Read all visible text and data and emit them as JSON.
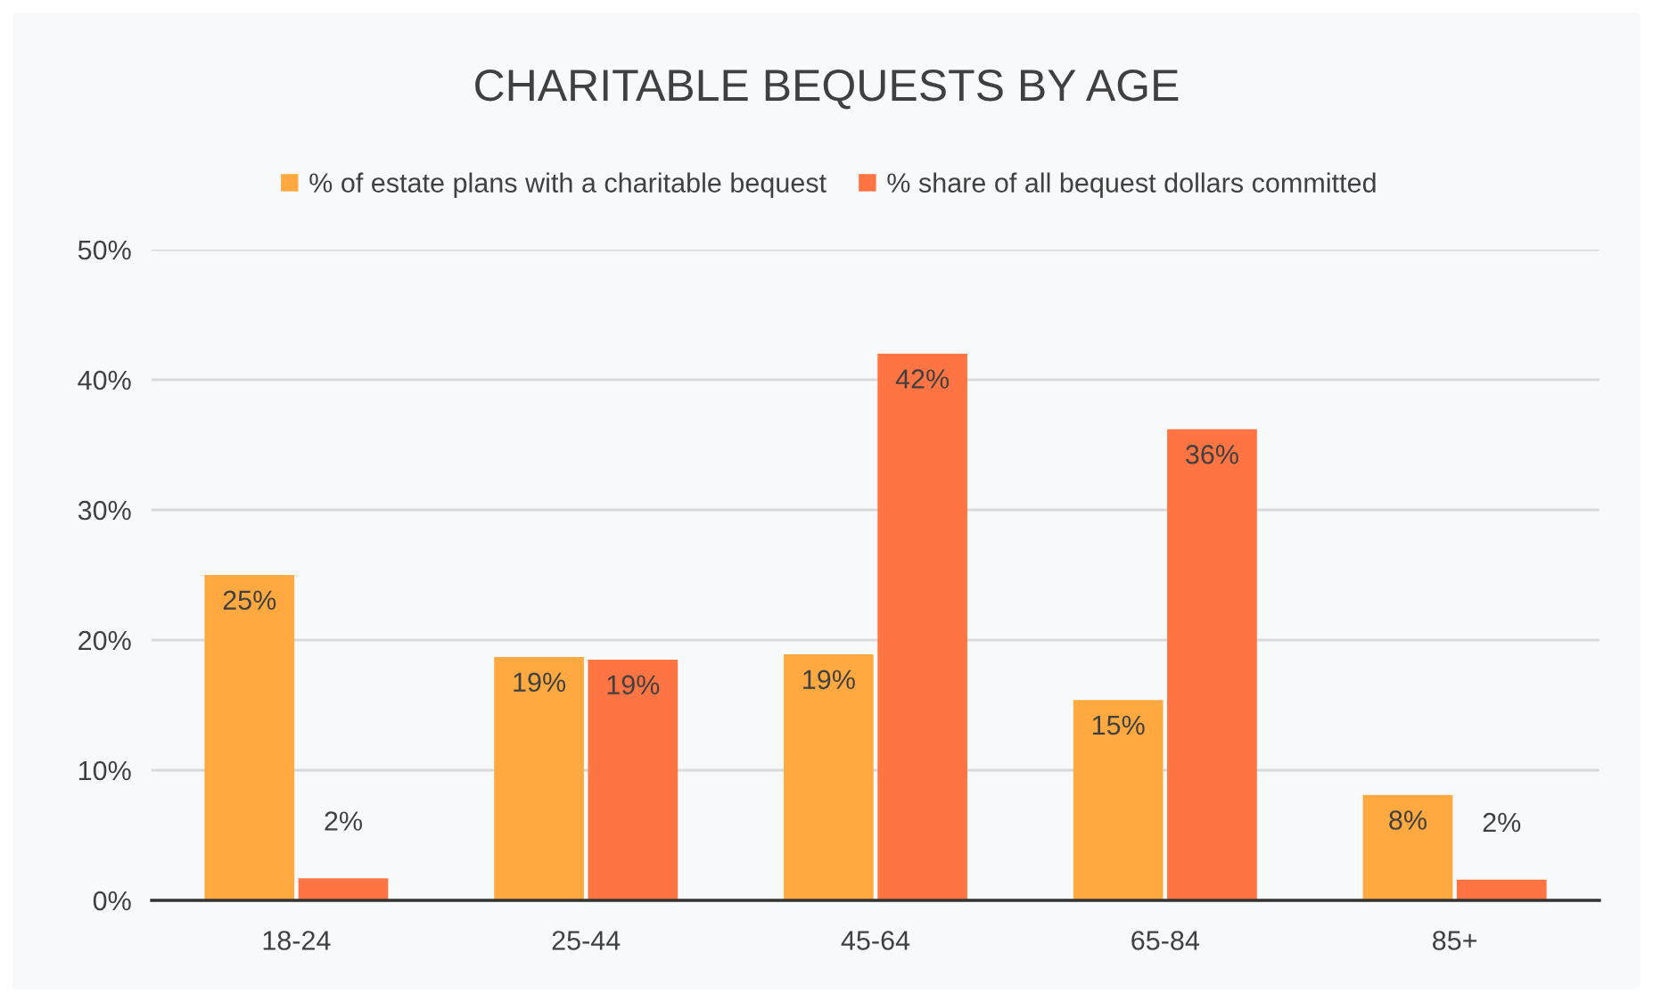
{
  "chart_data": {
    "type": "bar",
    "title": "CHARITABLE BEQUESTS BY AGE",
    "categories": [
      "18-24",
      "25-44",
      "45-64",
      "65-84",
      "85+"
    ],
    "series": [
      {
        "name": "% of estate plans with a charitable bequest",
        "color": "#ffa940",
        "values": [
          25,
          18.7,
          18.9,
          15.4,
          8.1
        ],
        "value_labels": [
          "25%",
          "19%",
          "19%",
          "15%",
          "8%"
        ]
      },
      {
        "name": "% share of all bequest dollars committed",
        "color": "#ff7443",
        "values": [
          1.7,
          18.5,
          42,
          36.2,
          1.6
        ],
        "value_labels": [
          "2%",
          "19%",
          "42%",
          "36%",
          "2%"
        ]
      }
    ],
    "ylim": [
      0,
      50
    ],
    "yticks": [
      {
        "value": 0,
        "label": "0%"
      },
      {
        "value": 10,
        "label": "10%"
      },
      {
        "value": 20,
        "label": "20%"
      },
      {
        "value": 30,
        "label": "30%"
      },
      {
        "value": 40,
        "label": "40%"
      },
      {
        "value": 50,
        "label": "50%"
      }
    ],
    "grid": "y",
    "legend": "top"
  }
}
